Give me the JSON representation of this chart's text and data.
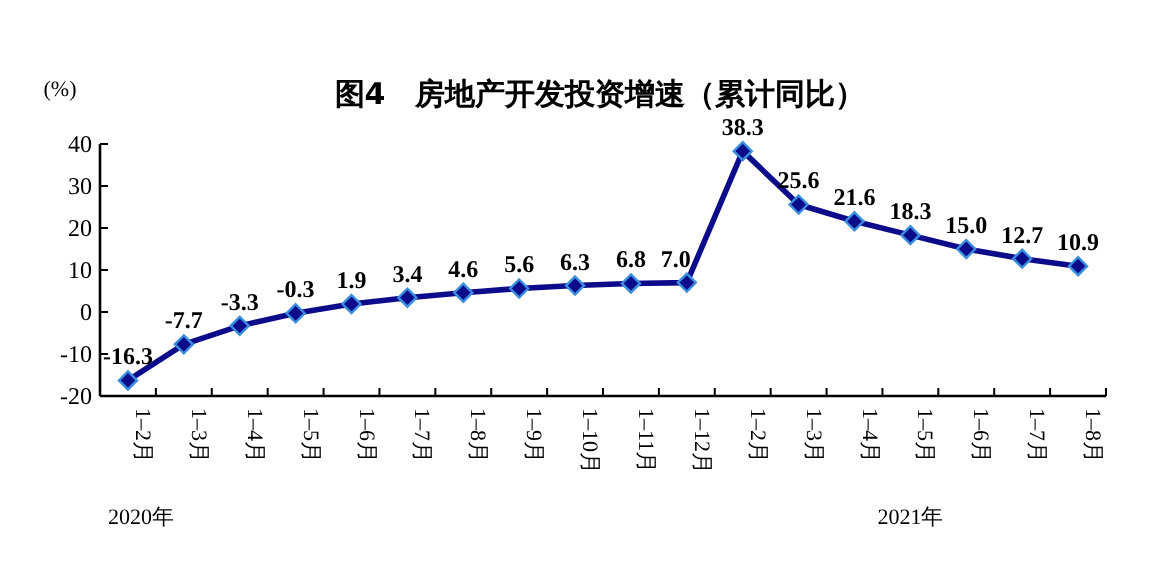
{
  "chart_data": {
    "type": "line",
    "title": "图4　房地产开发投资增速（累计同比）",
    "ylabel": "(%)",
    "categories": [
      "1–2月",
      "1–3月",
      "1–4月",
      "1–5月",
      "1–6月",
      "1–7月",
      "1–8月",
      "1–9月",
      "1–10月",
      "1–11月",
      "1–12月",
      "1–2月",
      "1–3月",
      "1–4月",
      "1–5月",
      "1–6月",
      "1–7月",
      "1–8月"
    ],
    "series": [
      {
        "color": "#0c0c8a",
        "values": [
          -16.3,
          -7.7,
          -3.3,
          -0.3,
          1.9,
          3.4,
          4.6,
          5.6,
          6.3,
          6.8,
          7.0,
          38.3,
          25.6,
          21.6,
          18.3,
          15.0,
          12.7,
          10.9
        ],
        "value_labels": [
          "-16.3",
          "-7.7",
          "-3.3",
          "-0.3",
          "1.9",
          "3.4",
          "4.6",
          "5.6",
          "6.3",
          "6.8",
          "7.0",
          "38.3",
          "25.6",
          "21.6",
          "18.3",
          "15.0",
          "12.7",
          "10.9"
        ]
      }
    ],
    "ylim": [
      -20,
      40
    ],
    "yticks": [
      -20,
      -10,
      0,
      10,
      20,
      30,
      40
    ],
    "marker": "diamond",
    "annotations": [
      "2020年",
      "2021年"
    ]
  }
}
